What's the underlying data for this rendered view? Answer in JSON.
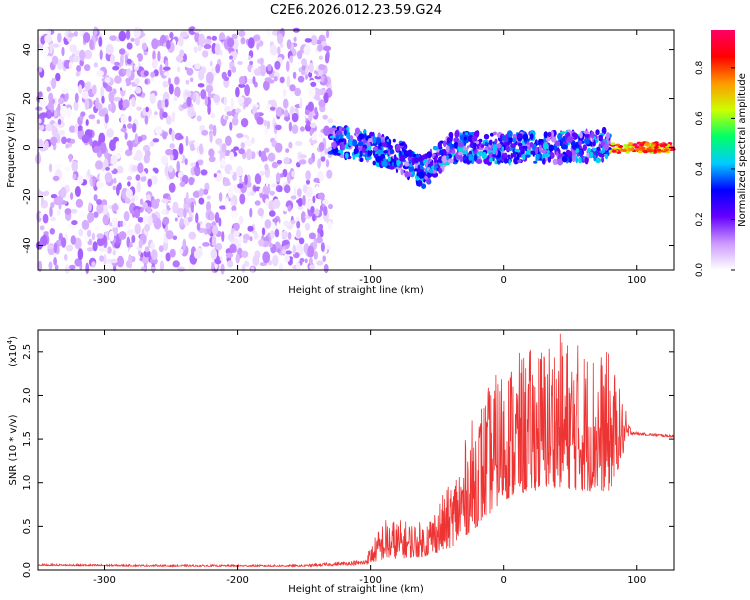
{
  "title": "C2E6.2026.012.23.59.G24",
  "chart_data": [
    {
      "type": "heatmap",
      "xlabel": "Height of straight line (km)",
      "ylabel": "Frequency (Hz)",
      "xlim": [
        -350,
        128
      ],
      "ylim": [
        -50,
        48
      ],
      "xticks": [
        -300,
        -200,
        -100,
        0,
        100
      ],
      "yticks": [
        -40,
        -20,
        0,
        20,
        40
      ],
      "colorbar": {
        "label": "Normalized spectral amplitude",
        "range": [
          0,
          0.95
        ],
        "ticks": [
          0,
          0.2,
          0.4,
          0.6,
          0.8
        ],
        "colors": [
          "#ffffff",
          "#cc99ff",
          "#6600ff",
          "#0000ff",
          "#00ccff",
          "#00ff66",
          "#ccff00",
          "#ff9900",
          "#ff0000",
          "#ff0066"
        ]
      },
      "regions": [
        {
          "name": "noise",
          "x": [
            -350,
            -130
          ],
          "freq_range": [
            -50,
            48
          ],
          "amplitude": [
            0.0,
            0.15
          ]
        },
        {
          "name": "signal",
          "x": [
            -130,
            80
          ],
          "center_freq": [
            [
              -130,
              3
            ],
            [
              -100,
              0
            ],
            [
              -80,
              -3
            ],
            [
              -60,
              -10
            ],
            [
              -40,
              0
            ],
            [
              0,
              0
            ],
            [
              40,
              0
            ],
            [
              80,
              1
            ]
          ],
          "half_width": 6,
          "amplitude": [
            0.1,
            0.45
          ]
        },
        {
          "name": "tone",
          "x": [
            80,
            128
          ],
          "center_freq": 0,
          "half_width": 2,
          "amplitude": [
            0.6,
            0.95
          ]
        }
      ]
    },
    {
      "type": "line",
      "xlabel": "Height of straight line (km)",
      "ylabel": "SNR (10 * v/v)",
      "scale_label": "(x10",
      "scale_exp": "4",
      "xlim": [
        -350,
        128
      ],
      "ylim": [
        0,
        2.75
      ],
      "xticks": [
        -300,
        -200,
        -100,
        0,
        100
      ],
      "yticks": [
        0.0,
        0.5,
        1.0,
        1.5,
        2.0,
        2.5
      ],
      "color": "#ee3333",
      "series": [
        {
          "name": "SNR",
          "x": [
            -350,
            -250,
            -150,
            -105,
            -90,
            -60,
            -40,
            -20,
            0,
            20,
            40,
            60,
            80,
            95,
            100,
            128
          ],
          "baseline": [
            0.05,
            0.04,
            0.04,
            0.06,
            0.12,
            0.15,
            0.25,
            0.5,
            0.8,
            0.9,
            0.95,
            0.9,
            0.9,
            1.55,
            1.55,
            1.52
          ],
          "peak": [
            0.07,
            0.06,
            0.06,
            0.12,
            0.6,
            0.55,
            1.0,
            1.9,
            2.4,
            2.55,
            2.75,
            2.6,
            2.5,
            1.65,
            1.58,
            1.55
          ]
        }
      ]
    }
  ]
}
